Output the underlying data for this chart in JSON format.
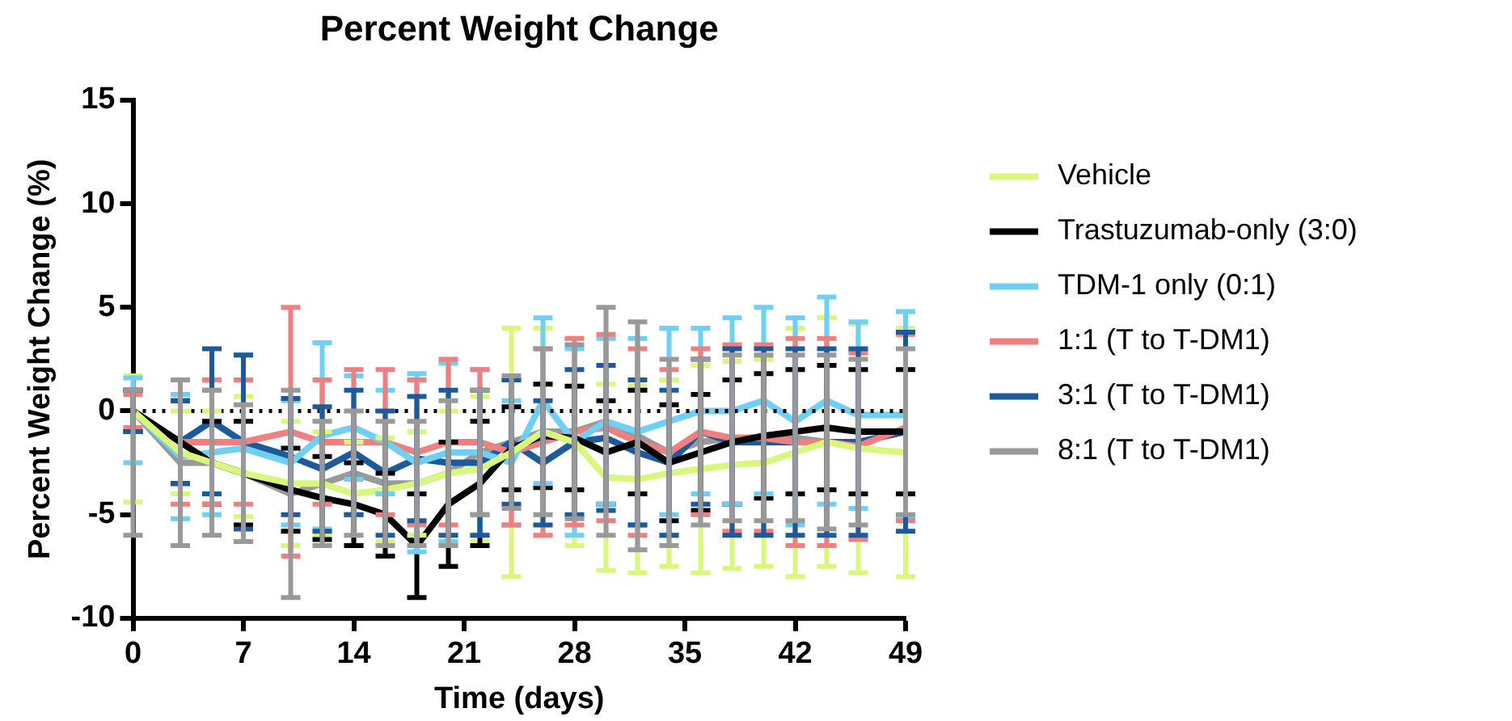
{
  "chart_data": {
    "type": "line",
    "title": "Percent Weight Change",
    "xlabel": "Time (days)",
    "ylabel": "Percent Weight Change (%)",
    "x": [
      0,
      3,
      5,
      7,
      10,
      12,
      14,
      16,
      18,
      20,
      22,
      24,
      26,
      28,
      30,
      32,
      34,
      36,
      38,
      40,
      42,
      44,
      46,
      49
    ],
    "xlim": [
      0,
      49
    ],
    "xticks": [
      0,
      7,
      14,
      21,
      28,
      35,
      42,
      49
    ],
    "ylim": [
      -10,
      15
    ],
    "yticks": [
      -10,
      -5,
      0,
      5,
      10,
      15
    ],
    "grid": false,
    "legend": "right",
    "marker": "none",
    "line_style": "solid",
    "ref_lines": [
      {
        "axis": "y",
        "value": 0,
        "line_style": "dotted",
        "color": "#000000"
      }
    ],
    "series": [
      {
        "name": "Vehicle",
        "color": "#d9f77a",
        "values": [
          0,
          -2,
          -2.5,
          -3,
          -3.5,
          -3.5,
          -4,
          -3.8,
          -3.5,
          -3,
          -2.8,
          -2,
          -1,
          -1.5,
          -3.2,
          -3.3,
          -3,
          -2.8,
          -2.6,
          -2.5,
          -2,
          -1.5,
          -1.8,
          -2
        ],
        "errors": [
          [
            -4.4,
            1.7
          ],
          2,
          2.5,
          [
            -5.1,
            0.7
          ],
          3,
          2.5,
          2.5,
          2.5,
          2.5,
          3,
          3.5,
          6,
          5,
          5,
          4.5,
          4.5,
          4.5,
          5,
          5,
          5,
          6,
          6,
          6,
          6
        ]
      },
      {
        "name": "Trastuzumab-only (3:0)",
        "color": "#000000",
        "values": [
          0,
          -1.5,
          -2.5,
          -3,
          -3.8,
          -4.2,
          -4.5,
          -5,
          -6.5,
          -4.5,
          -3.5,
          -1.8,
          -1.2,
          -1.3,
          -2,
          -1.5,
          -2.5,
          -2,
          -1.5,
          -1.2,
          -1,
          -0.8,
          -1,
          -1
        ],
        "errors": [
          1,
          2,
          2,
          2.5,
          2,
          2,
          2,
          2,
          2.5,
          3,
          3,
          2,
          2.5,
          2.5,
          2.5,
          2.5,
          2.8,
          2.8,
          3,
          3,
          3,
          3,
          3,
          3
        ]
      },
      {
        "name": "TDM-1 only (0:1)",
        "color": "#6fd0f6",
        "values": [
          0,
          -2.2,
          -2,
          -1.8,
          -2.5,
          -1.2,
          -0.8,
          -1.5,
          -2.5,
          -2,
          -2,
          -2.5,
          0.5,
          -1.5,
          -0.5,
          -1,
          -0.5,
          0,
          0,
          0.5,
          -0.5,
          0.5,
          -0.2,
          -0.2
        ],
        "errors": [
          [
            -2.5,
            1.6
          ],
          3,
          3,
          4.5,
          3,
          4.5,
          2.5,
          2.5,
          4.3,
          4.3,
          4,
          3,
          4,
          4.5,
          4,
          4.5,
          4.5,
          4,
          4.5,
          4.5,
          5,
          5,
          4.5,
          5
        ]
      },
      {
        "name": "1:1 (T to T-DM1)",
        "color": "#f08080",
        "values": [
          0,
          -1.5,
          -1.5,
          -1.5,
          -1,
          -1.5,
          -1.5,
          -1.5,
          -2,
          -1.5,
          -1.5,
          -2,
          -1.5,
          -1,
          -0.8,
          -1.5,
          -2,
          -1,
          -1.3,
          -1.3,
          -1.5,
          -1.5,
          -1.7,
          -0.8
        ],
        "errors": [
          0.8,
          3,
          3,
          3,
          6,
          3,
          3.5,
          3.5,
          3.5,
          4,
          3.5,
          3.5,
          4.5,
          4.5,
          4.5,
          4.5,
          4,
          4,
          4.5,
          4.5,
          5,
          5,
          4.5,
          4.5
        ]
      },
      {
        "name": "3:1 (T to T-DM1)",
        "color": "#1c5a9c",
        "values": [
          0,
          -1.5,
          -0.5,
          -1.5,
          -2.2,
          -2.8,
          -2,
          -3,
          -2.3,
          -2.5,
          -2.5,
          -1.5,
          -2.5,
          -1.5,
          -1.3,
          -2,
          -2.5,
          -1,
          -1.5,
          -1.5,
          -1.5,
          -1.5,
          -1.5,
          -1
        ],
        "errors": [
          1,
          2,
          3.5,
          4.2,
          2.8,
          3,
          3,
          3,
          3,
          3.5,
          3.5,
          3,
          3,
          3.5,
          3.5,
          3.5,
          3.5,
          3.5,
          4.5,
          4.5,
          4.5,
          4.5,
          4.5,
          4.8
        ]
      },
      {
        "name": "8:1 (T to T-DM1)",
        "color": "#999999",
        "values": [
          0,
          -2.5,
          -2.5,
          -3,
          -4,
          -3.5,
          -3,
          -3.5,
          -3.5,
          -3,
          -2,
          -1.5,
          -1,
          -1,
          -0.5,
          -1.2,
          -2,
          -1.5,
          -1.3,
          -1.3,
          -1.3,
          -1.5,
          -1.5,
          -1
        ],
        "errors": [
          [
            -6,
            1
          ],
          4,
          3.5,
          3.3,
          5,
          3,
          3,
          3,
          3,
          3.5,
          3,
          3.2,
          4,
          4.2,
          5.5,
          5.5,
          4.5,
          4,
          4,
          4,
          4,
          4.2,
          4,
          4
        ]
      }
    ]
  }
}
